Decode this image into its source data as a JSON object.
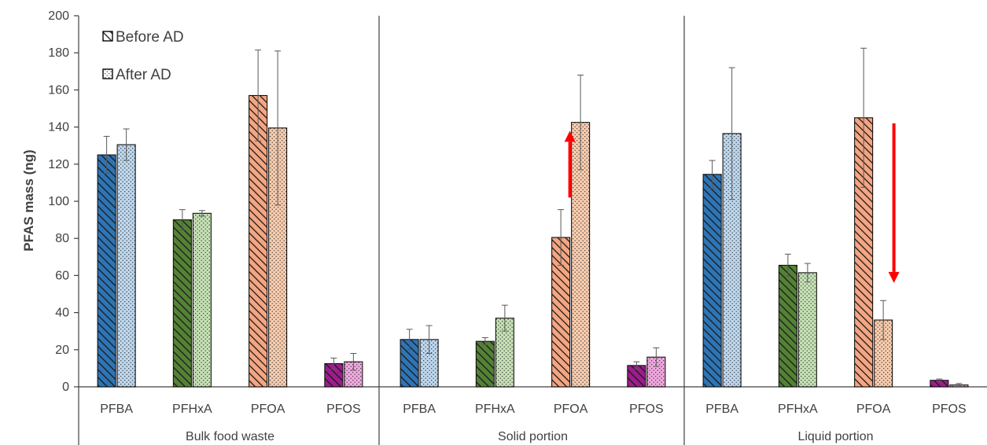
{
  "chart_data": {
    "type": "bar",
    "ylabel": "PFAS mass (ng)",
    "ylim": [
      0,
      200
    ],
    "yticks": [
      0,
      20,
      40,
      60,
      80,
      100,
      120,
      140,
      160,
      180,
      200
    ],
    "legend": {
      "placement": "top-left",
      "before_label": "Before AD",
      "after_label": "After AD"
    },
    "grid": false,
    "colors": {
      "PFBA": {
        "before": "#2e75b6",
        "after": "#bdd7ee"
      },
      "PFHxA": {
        "before": "#548235",
        "after": "#c5e0b4"
      },
      "PFOA": {
        "before": "#f4a582",
        "after": "#f8cbad"
      },
      "PFOS": {
        "before": "#9e1b8e",
        "after": "#f2a7e0"
      },
      "arrow": "#ff0000",
      "error": "#595959",
      "axis": "#404040"
    },
    "groups": [
      {
        "label": "Bulk food waste",
        "categories": [
          "PFBA",
          "PFHxA",
          "PFOA",
          "PFOS"
        ],
        "before": {
          "values": [
            125,
            90,
            157,
            12.5
          ],
          "errors": [
            10,
            5.5,
            24.5,
            3
          ]
        },
        "after": {
          "values": [
            130.5,
            93.5,
            139.5,
            13.5
          ],
          "errors": [
            8.5,
            1.5,
            41.5,
            4.5
          ]
        }
      },
      {
        "label": "Solid portion",
        "categories": [
          "PFBA",
          "PFHxA",
          "PFOA",
          "PFOS"
        ],
        "before": {
          "values": [
            25.5,
            24.5,
            80.5,
            11.5
          ],
          "errors": [
            5.5,
            2,
            15,
            2
          ]
        },
        "after": {
          "values": [
            25.5,
            37,
            142.5,
            16
          ],
          "errors": [
            7.5,
            7,
            25.5,
            5
          ]
        }
      },
      {
        "label": "Liquid portion",
        "categories": [
          "PFBA",
          "PFHxA",
          "PFOA",
          "PFOS"
        ],
        "before": {
          "values": [
            114.5,
            65.5,
            145,
            3.5
          ],
          "errors": [
            7.5,
            6,
            37.5,
            0.7
          ]
        },
        "after": {
          "values": [
            136.5,
            61.5,
            36,
            1
          ],
          "errors": [
            35.5,
            5,
            10.5,
            0.8
          ]
        }
      }
    ],
    "arrows": [
      {
        "group": 1,
        "category": "PFOA",
        "direction": "up",
        "from": 102,
        "to": 138
      },
      {
        "group": 2,
        "category": "PFOA",
        "direction": "down",
        "from": 142,
        "to": 56
      }
    ]
  }
}
